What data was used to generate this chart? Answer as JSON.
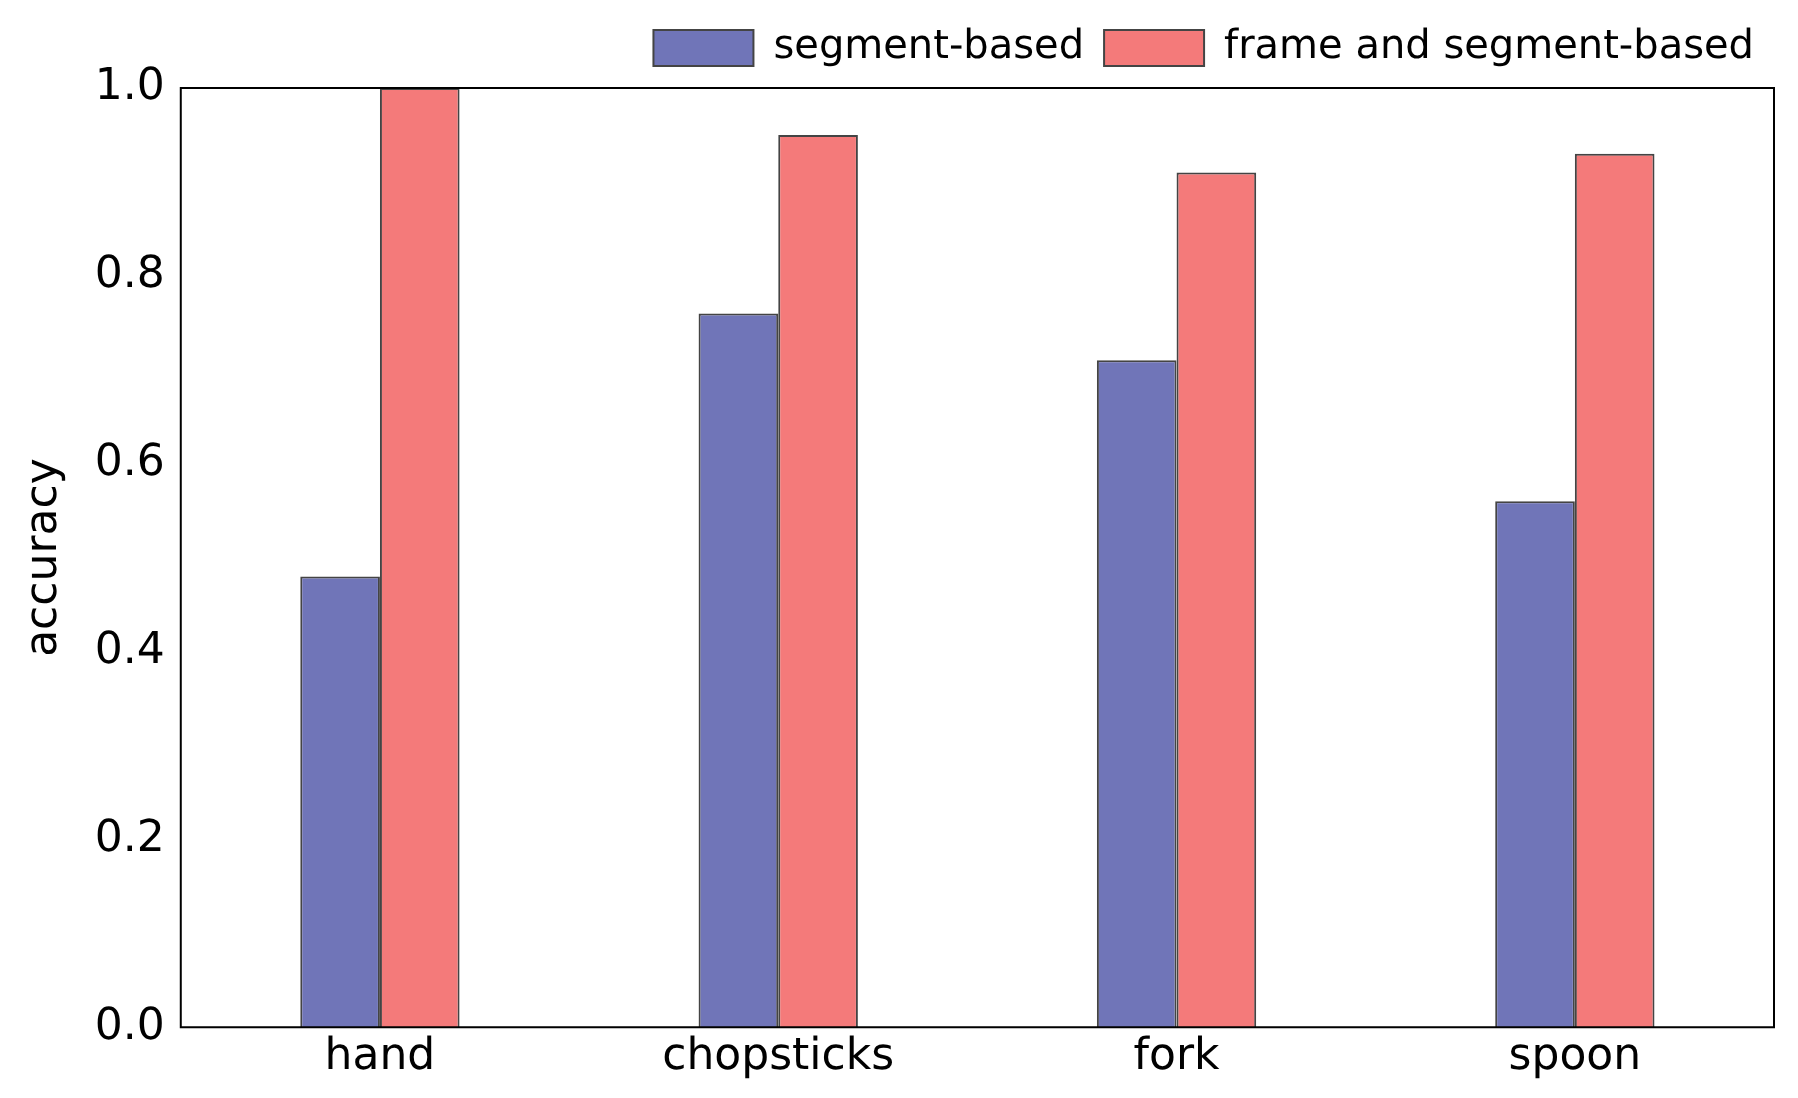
{
  "chart_data": {
    "type": "bar",
    "ylabel": "accuracy",
    "categories": [
      "hand",
      "chopsticks",
      "fork",
      "spoon"
    ],
    "series": [
      {
        "name": "segment-based",
        "color": "#7075b8",
        "values": [
          0.48,
          0.76,
          0.71,
          0.56
        ]
      },
      {
        "name": "frame and segment-based",
        "color": "#f47a7a",
        "values": [
          1.0,
          0.95,
          0.91,
          0.93
        ]
      }
    ],
    "ylim": [
      0,
      1
    ],
    "yticks": [
      {
        "value": 0,
        "label": "0.0"
      },
      {
        "value": 0.2,
        "label": "0.2"
      },
      {
        "value": 0.4,
        "label": "0.4"
      },
      {
        "value": 0.6,
        "label": "0.6"
      },
      {
        "value": 0.8,
        "label": "0.8"
      },
      {
        "value": 1,
        "label": "1.0"
      }
    ],
    "grid": false,
    "legend": "top right"
  }
}
